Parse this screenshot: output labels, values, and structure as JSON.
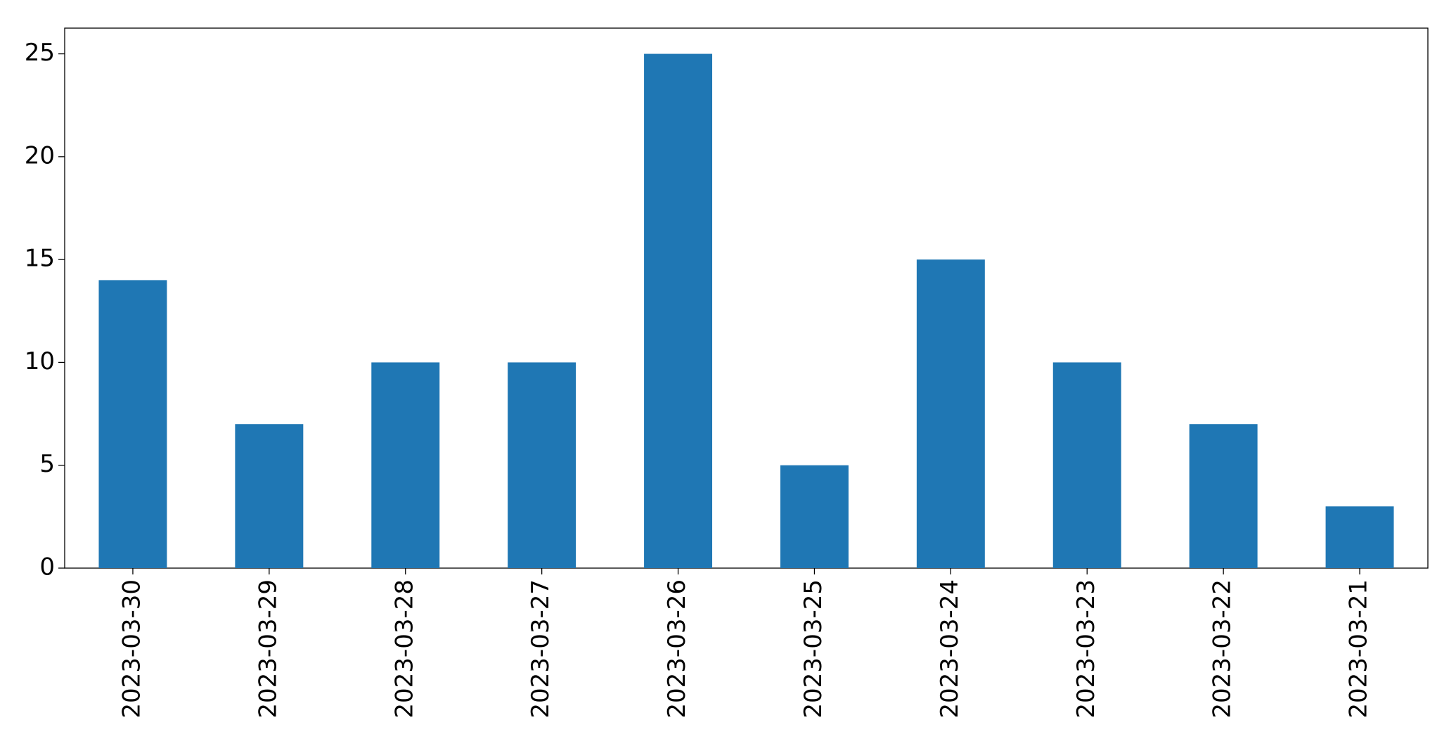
{
  "chart_data": {
    "type": "bar",
    "categories": [
      "2023-03-30",
      "2023-03-29",
      "2023-03-28",
      "2023-03-27",
      "2023-03-26",
      "2023-03-25",
      "2023-03-24",
      "2023-03-23",
      "2023-03-22",
      "2023-03-21"
    ],
    "values": [
      14,
      7,
      10,
      10,
      25,
      5,
      15,
      10,
      7,
      3
    ],
    "color": "#1f77b4",
    "ylim": [
      0,
      26.25
    ],
    "yticks": [
      0,
      5,
      10,
      15,
      20,
      25
    ],
    "grid": false
  }
}
